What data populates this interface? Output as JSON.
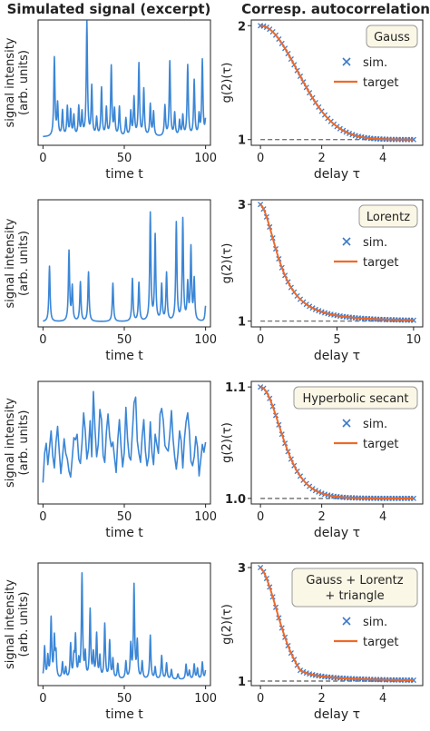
{
  "columns": {
    "left_title": "Simulated signal (excerpt)",
    "right_title": "Corresp. autocorrelation"
  },
  "colors": {
    "signal": "#3b86d6",
    "sim_marker": "#3b78c9",
    "target_line": "#ee6a2a",
    "baseline": "#777777",
    "legend_box_bg": "#fbf7e6"
  },
  "chart_data": [
    {
      "type": "line",
      "panel": "signal-gauss",
      "xlabel": "time t",
      "ylabel": "signal intensity (arb. units)",
      "xlim": [
        -3,
        103
      ],
      "ylim": [
        -0.5,
        9.4
      ],
      "xticks": [
        "0",
        "50",
        "100"
      ],
      "peaks": [
        [
          7,
          6.2
        ],
        [
          9,
          2.5
        ],
        [
          12,
          2.0
        ],
        [
          15,
          2.3
        ],
        [
          17,
          2.0
        ],
        [
          19,
          1.6
        ],
        [
          22,
          2.3
        ],
        [
          24,
          1.8
        ],
        [
          27,
          9.0
        ],
        [
          30,
          3.9
        ],
        [
          33,
          1.4
        ],
        [
          36,
          3.8
        ],
        [
          39,
          2.2
        ],
        [
          42,
          5.5
        ],
        [
          44,
          2.0
        ],
        [
          47,
          2.3
        ],
        [
          51,
          1.4
        ],
        [
          54,
          1.9
        ],
        [
          56,
          3.0
        ],
        [
          59,
          5.7
        ],
        [
          62,
          3.7
        ],
        [
          66,
          2.5
        ],
        [
          68,
          1.9
        ],
        [
          75,
          2.4
        ],
        [
          78,
          5.9
        ],
        [
          81,
          1.8
        ],
        [
          84,
          1.2
        ],
        [
          86,
          1.6
        ],
        [
          89,
          5.6
        ],
        [
          93,
          4.4
        ],
        [
          96,
          1.6
        ],
        [
          98,
          6.0
        ],
        [
          100,
          1.2
        ]
      ],
      "baseline": 0.15
    },
    {
      "type": "scatter+line",
      "panel": "acf-gauss",
      "legend_title": "Gauss",
      "legend": [
        "sim.",
        "target"
      ],
      "xlabel": "delay τ",
      "ylabel": "g(2)(τ)",
      "xlim": [
        -0.3,
        5.3
      ],
      "ylim": [
        0.95,
        2.05
      ],
      "xticks": [
        "0",
        "2",
        "4"
      ],
      "yticks": [
        "1",
        "2"
      ],
      "function": "gauss",
      "g0": 2.0,
      "width": 1.2,
      "tau_max": 5.0,
      "marker_step": 0.1
    },
    {
      "type": "line",
      "panel": "signal-lorentz",
      "xlabel": "time t",
      "ylabel": "signal intensity (arb. units)",
      "xlim": [
        -3,
        103
      ],
      "ylim": [
        -0.5,
        14.4
      ],
      "xticks": [
        "0",
        "50",
        "100"
      ],
      "peaks": [
        [
          4,
          6.5
        ],
        [
          16,
          8.2
        ],
        [
          18,
          4.0
        ],
        [
          23,
          4.6
        ],
        [
          28,
          5.8
        ],
        [
          43,
          4.5
        ],
        [
          55,
          5.0
        ],
        [
          59,
          4.5
        ],
        [
          66,
          12.6
        ],
        [
          69,
          10.0
        ],
        [
          73,
          4.2
        ],
        [
          76,
          5.6
        ],
        [
          82,
          11.5
        ],
        [
          86,
          11.9
        ],
        [
          89,
          4.2
        ],
        [
          91,
          8.5
        ],
        [
          93,
          4.8
        ],
        [
          100,
          1.8
        ]
      ],
      "baseline": 0.1
    },
    {
      "type": "scatter+line",
      "panel": "acf-lorentz",
      "legend_title": "Lorentz",
      "legend": [
        "sim.",
        "target"
      ],
      "xlabel": "delay τ",
      "ylabel": "g(2)(τ)",
      "xlim": [
        -0.6,
        10.6
      ],
      "ylim": [
        0.9,
        3.08
      ],
      "xticks": [
        "0",
        "5",
        "10"
      ],
      "yticks": [
        "1",
        "3"
      ],
      "function": "lorentz",
      "g0": 3.0,
      "width": 1.5,
      "tau_max": 10.0,
      "marker_step": 0.2
    },
    {
      "type": "line",
      "panel": "signal-sech",
      "xlabel": "time t",
      "ylabel": "signal intensity (arb. units)",
      "xlim": [
        -3,
        103
      ],
      "ylim": [
        0.9,
        11.8
      ],
      "xticks": [
        "0",
        "50",
        "100"
      ],
      "values": [
        2.8,
        5.4,
        6.3,
        4.4,
        5.9,
        7.4,
        5.2,
        4.1,
        6.4,
        7.8,
        5.6,
        3.6,
        5.1,
        6.7,
        5.4,
        4.9,
        3.8,
        3.3,
        5.0,
        6.8,
        6.6,
        7.1,
        4.9,
        4.5,
        6.3,
        9.0,
        7.4,
        4.9,
        5.8,
        8.3,
        5.1,
        10.9,
        7.5,
        5.1,
        6.2,
        9.3,
        8.4,
        5.2,
        4.6,
        7.3,
        8.9,
        6.9,
        6.0,
        6.4,
        5.0,
        3.7,
        6.6,
        8.4,
        6.0,
        4.2,
        5.5,
        9.5,
        6.7,
        5.1,
        4.8,
        7.3,
        9.9,
        10.4,
        6.5,
        5.4,
        4.6,
        6.9,
        8.4,
        5.6,
        4.3,
        5.1,
        8.2,
        5.5,
        4.4,
        7.1,
        6.2,
        5.4,
        8.9,
        9.4,
        8.3,
        6.1,
        5.8,
        5.6,
        7.1,
        9.2,
        6.7,
        5.1,
        4.0,
        5.4,
        7.4,
        6.5,
        4.1,
        6.7,
        8.2,
        9.0,
        7.4,
        4.7,
        4.3,
        5.1,
        6.9,
        6.0,
        3.4,
        4.8,
        6.2,
        5.5,
        6.4
      ]
    },
    {
      "type": "scatter+line",
      "panel": "acf-sech",
      "legend_title": "Hyperbolic secant",
      "legend": [
        "sim.",
        "target"
      ],
      "xlabel": "delay τ",
      "ylabel": "g(2)(τ)",
      "xlim": [
        -0.3,
        5.3
      ],
      "ylim": [
        0.995,
        1.105
      ],
      "xticks": [
        "0",
        "2",
        "4"
      ],
      "yticks": [
        "1.0",
        "1.1"
      ],
      "function": "sech",
      "g0": 1.1,
      "width": 0.9,
      "tau_max": 5.0,
      "marker_step": 0.1
    },
    {
      "type": "line",
      "panel": "signal-mixed",
      "xlabel": "time t",
      "ylabel": "signal intensity (arb. units)",
      "xlim": [
        -3,
        103
      ],
      "ylim": [
        -0.5,
        11.0
      ],
      "xticks": [
        "0",
        "50",
        "100"
      ],
      "peaks": [
        [
          1,
          3.0
        ],
        [
          3,
          2.0
        ],
        [
          5,
          5.6
        ],
        [
          7,
          3.7
        ],
        [
          8,
          2.2
        ],
        [
          12,
          1.5
        ],
        [
          14,
          1.0
        ],
        [
          17,
          3.2
        ],
        [
          19,
          1.8
        ],
        [
          20,
          3.8
        ],
        [
          22,
          1.5
        ],
        [
          24,
          9.7
        ],
        [
          26,
          2.2
        ],
        [
          29,
          6.4
        ],
        [
          31,
          2.2
        ],
        [
          33,
          4.1
        ],
        [
          35,
          2.0
        ],
        [
          38,
          5.1
        ],
        [
          41,
          3.5
        ],
        [
          43,
          1.8
        ],
        [
          46,
          1.4
        ],
        [
          51,
          1.6
        ],
        [
          54,
          3.1
        ],
        [
          56,
          8.7
        ],
        [
          58,
          3.4
        ],
        [
          61,
          1.6
        ],
        [
          66,
          4.1
        ],
        [
          69,
          1.1
        ],
        [
          73,
          2.2
        ],
        [
          76,
          1.5
        ],
        [
          79,
          0.9
        ],
        [
          83,
          0.5
        ],
        [
          88,
          1.4
        ],
        [
          90,
          0.8
        ],
        [
          93,
          1.4
        ],
        [
          95,
          1.0
        ],
        [
          98,
          1.6
        ],
        [
          100,
          0.8
        ]
      ],
      "baseline": 0.05
    },
    {
      "type": "scatter+line",
      "panel": "acf-mixed",
      "legend_title": "Gauss + Lorentz + triangle",
      "legend": [
        "sim.",
        "target"
      ],
      "xlabel": "delay τ",
      "ylabel": "g(2)(τ)",
      "xlim": [
        -0.3,
        5.3
      ],
      "ylim": [
        0.92,
        3.08
      ],
      "xticks": [
        "0",
        "2",
        "4"
      ],
      "yticks": [
        "1",
        "3"
      ],
      "function": "mixed",
      "g0": 3.0,
      "width": 1.0,
      "tau_max": 5.0,
      "marker_step": 0.1
    }
  ]
}
